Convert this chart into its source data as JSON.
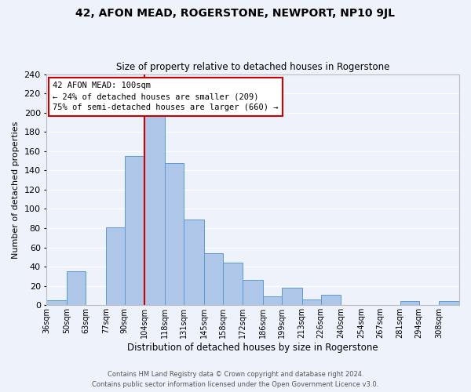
{
  "title": "42, AFON MEAD, ROGERSTONE, NEWPORT, NP10 9JL",
  "subtitle": "Size of property relative to detached houses in Rogerstone",
  "xlabel": "Distribution of detached houses by size in Rogerstone",
  "ylabel": "Number of detached properties",
  "footer_line1": "Contains HM Land Registry data © Crown copyright and database right 2024.",
  "footer_line2": "Contains public sector information licensed under the Open Government Licence v3.0.",
  "bin_labels": [
    "36sqm",
    "50sqm",
    "63sqm",
    "77sqm",
    "90sqm",
    "104sqm",
    "118sqm",
    "131sqm",
    "145sqm",
    "158sqm",
    "172sqm",
    "186sqm",
    "199sqm",
    "213sqm",
    "226sqm",
    "240sqm",
    "254sqm",
    "267sqm",
    "281sqm",
    "294sqm",
    "308sqm"
  ],
  "bin_values": [
    5,
    35,
    0,
    81,
    155,
    201,
    148,
    89,
    54,
    44,
    26,
    9,
    18,
    6,
    11,
    0,
    0,
    0,
    4,
    0,
    4
  ],
  "bin_edges": [
    36,
    50,
    63,
    77,
    90,
    104,
    118,
    131,
    145,
    158,
    172,
    186,
    199,
    213,
    226,
    240,
    254,
    267,
    281,
    294,
    308,
    322
  ],
  "bar_color": "#aec6e8",
  "bar_edge_color": "#5b9bd5",
  "vline_x": 104,
  "vline_color": "#cc0000",
  "annotation_title": "42 AFON MEAD: 100sqm",
  "annotation_line1": "← 24% of detached houses are smaller (209)",
  "annotation_line2": "75% of semi-detached houses are larger (660) →",
  "annotation_box_color": "#ffffff",
  "annotation_box_edge": "#cc0000",
  "ylim": [
    0,
    240
  ],
  "yticks": [
    0,
    20,
    40,
    60,
    80,
    100,
    120,
    140,
    160,
    180,
    200,
    220,
    240
  ],
  "background_color": "#eef2fb",
  "grid_color": "#ffffff"
}
